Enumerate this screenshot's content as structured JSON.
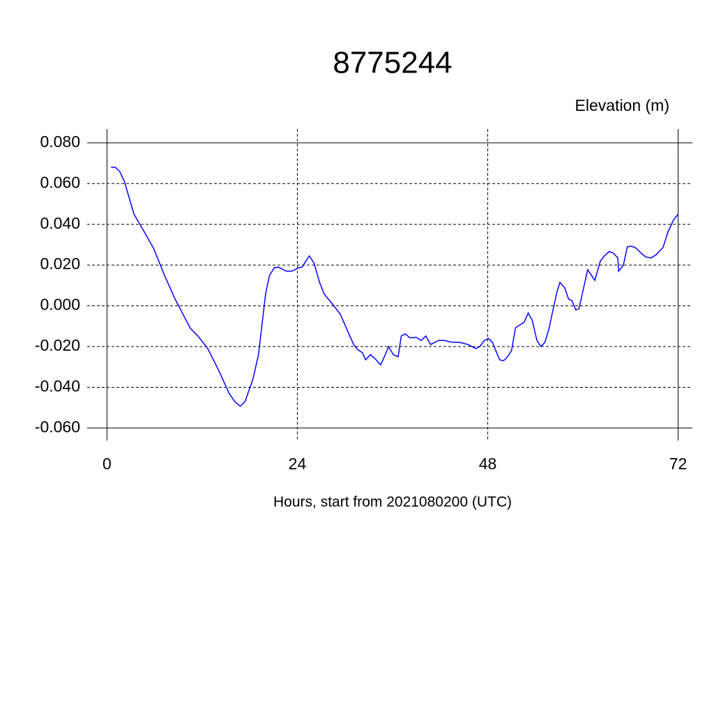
{
  "chart_data": {
    "type": "line",
    "title": "8775244",
    "y_label": "Elevation (m)",
    "x_label": "Hours, start from 2021080200 (UTC)",
    "x": [
      0.5,
      1.05,
      1.6,
      2.2,
      3.4,
      4.6,
      5.9,
      7.3,
      8.5,
      9.3,
      10.5,
      11.5,
      12.7,
      14,
      15.4,
      16.1,
      16.8,
      17.4,
      18.4,
      19.1,
      20,
      20.5,
      21.1,
      21.6,
      22.6,
      23.3,
      24.2,
      24.6,
      25.5,
      26.1,
      26.8,
      27.4,
      28.5,
      29.4,
      30.3,
      31.1,
      31.6,
      32.2,
      32.6,
      33.2,
      33.8,
      34.5,
      35.1,
      35.5,
      36.1,
      36.7,
      37.1,
      37.6,
      38.2,
      39,
      39.6,
      40.2,
      40.8,
      41.8,
      42.5,
      43.4,
      44.5,
      45.5,
      46.5,
      47,
      47.6,
      48.1,
      48.6,
      49.5,
      50,
      50.5,
      51,
      51.5,
      52,
      52.6,
      53.1,
      53.6,
      54.2,
      54.7,
      55.2,
      55.7,
      56.7,
      57.1,
      57.7,
      58.2,
      58.6,
      59.1,
      59.5,
      60.6,
      61.5,
      62.2,
      62.7,
      63.3,
      63.8,
      64.4,
      64.5,
      65.1,
      65.6,
      66.1,
      66.6,
      67.3,
      67.9,
      68.6,
      69.2,
      70.1,
      70.7,
      71.4,
      72
    ],
    "series": [
      {
        "color": "#0000ff",
        "values": [
          0.068,
          0.068,
          0.066,
          0.061,
          0.045,
          0.037,
          0.028,
          0.0145,
          0.004,
          -0.002,
          -0.011,
          -0.015,
          -0.021,
          -0.031,
          -0.043,
          -0.047,
          -0.0493,
          -0.047,
          -0.036,
          -0.024,
          0.006,
          0.015,
          0.0187,
          0.019,
          0.017,
          0.017,
          0.0187,
          0.019,
          0.0245,
          0.021,
          0.0115,
          0.0057,
          0.0005,
          -0.004,
          -0.012,
          -0.019,
          -0.0215,
          -0.023,
          -0.0265,
          -0.024,
          -0.026,
          -0.029,
          -0.0238,
          -0.02,
          -0.024,
          -0.025,
          -0.0148,
          -0.0138,
          -0.0157,
          -0.0155,
          -0.017,
          -0.0148,
          -0.019,
          -0.017,
          -0.017,
          -0.0178,
          -0.018,
          -0.019,
          -0.021,
          -0.02,
          -0.017,
          -0.016,
          -0.018,
          -0.0265,
          -0.027,
          -0.025,
          -0.022,
          -0.0108,
          -0.0095,
          -0.008,
          -0.0035,
          -0.007,
          -0.017,
          -0.02,
          -0.018,
          -0.0115,
          0.0064,
          0.0115,
          0.0089,
          0.0033,
          0.0026,
          -0.002,
          -0.0015,
          0.0177,
          0.0125,
          0.022,
          0.0245,
          0.0266,
          0.026,
          0.0235,
          0.017,
          0.02,
          0.029,
          0.0293,
          0.0286,
          0.026,
          0.024,
          0.0235,
          0.025,
          0.0286,
          0.036,
          0.042,
          0.045
        ]
      }
    ],
    "xlim": [
      -2.5,
      73.8
    ],
    "xticks": [
      0,
      24,
      48,
      72
    ],
    "ylim": [
      -0.0662,
      0.0868
    ],
    "yticks": [
      {
        "value": -0.06,
        "label": "-0.060"
      },
      {
        "value": -0.04,
        "label": "-0.040"
      },
      {
        "value": -0.02,
        "label": "-0.020"
      },
      {
        "value": 0,
        "label": "0.000"
      },
      {
        "value": 0.02,
        "label": "0.020"
      },
      {
        "value": 0.04,
        "label": "0.040"
      },
      {
        "value": 0.06,
        "label": "0.060"
      },
      {
        "value": 0.08,
        "label": "0.080"
      }
    ],
    "grid": true
  }
}
